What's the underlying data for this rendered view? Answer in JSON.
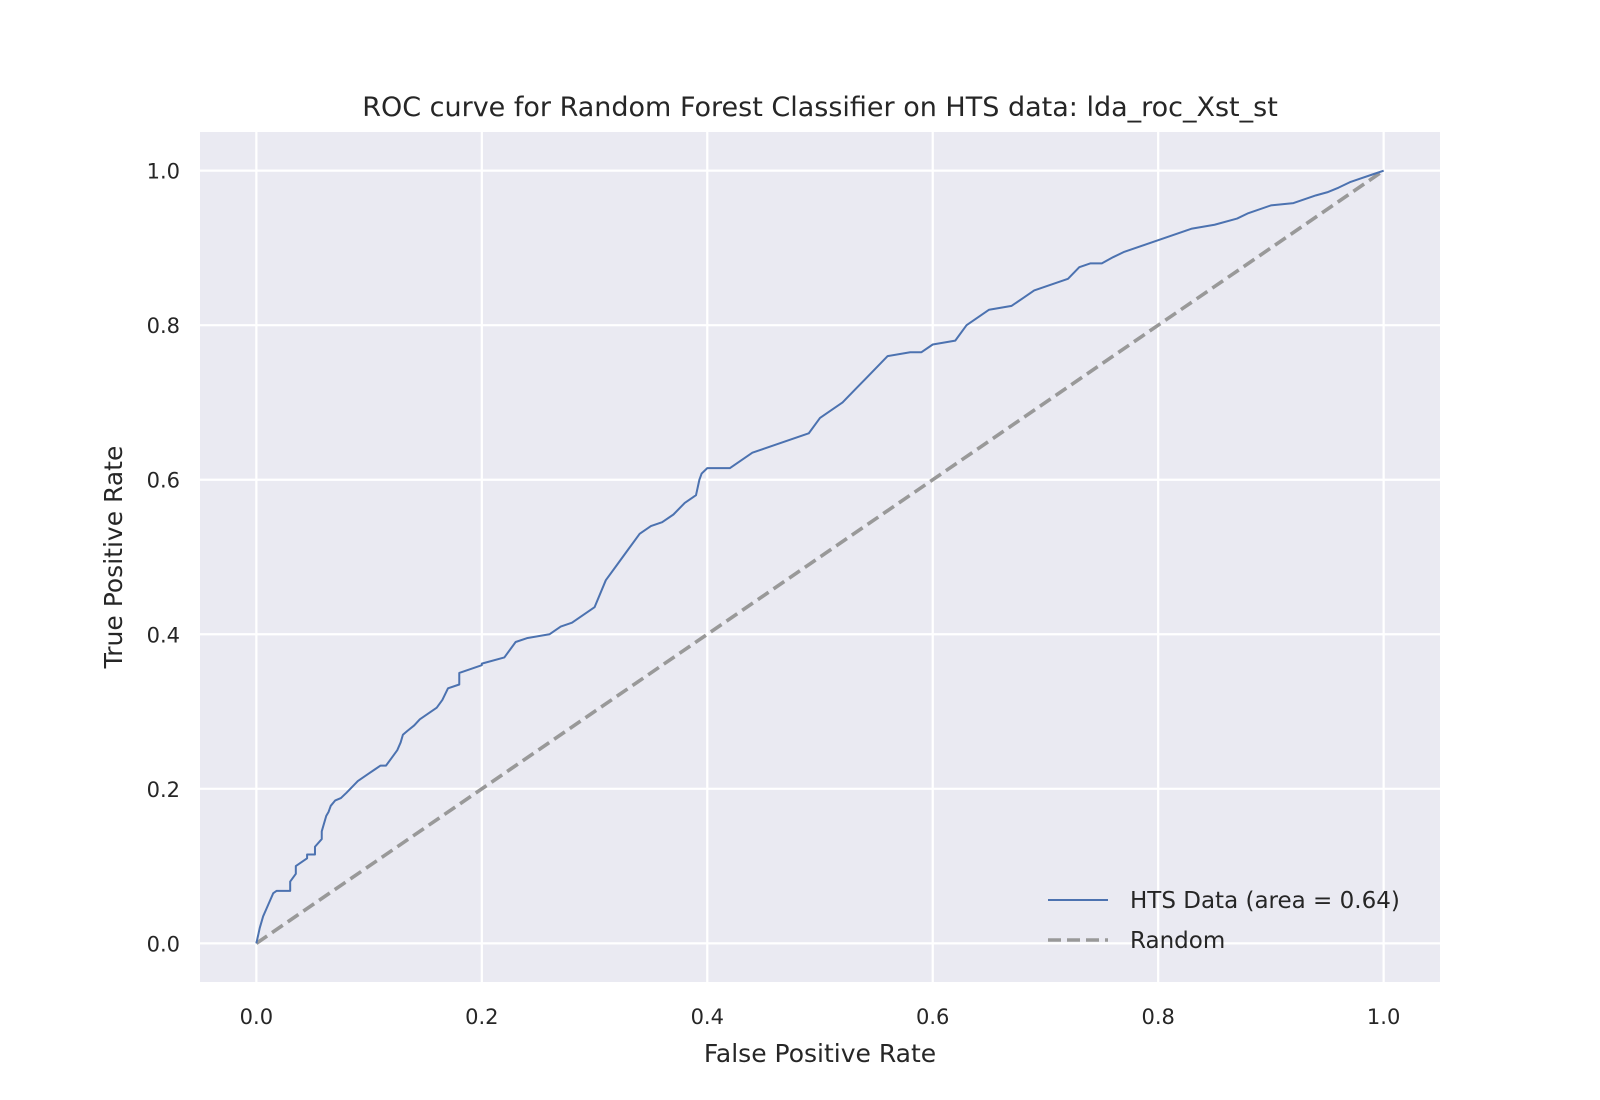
{
  "chart_data": {
    "type": "line",
    "title": "ROC curve for Random Forest Classifier on HTS data: lda_roc_Xst_st",
    "xlabel": "False Positive Rate",
    "ylabel": "True Positive Rate",
    "xlim": [
      -0.05,
      1.05
    ],
    "ylim": [
      -0.05,
      1.05
    ],
    "xticks": [
      0.0,
      0.2,
      0.4,
      0.6,
      0.8,
      1.0
    ],
    "yticks": [
      0.0,
      0.2,
      0.4,
      0.6,
      0.8,
      1.0
    ],
    "xtick_labels": [
      "0.0",
      "0.2",
      "0.4",
      "0.6",
      "0.8",
      "1.0"
    ],
    "ytick_labels": [
      "0.0",
      "0.2",
      "0.4",
      "0.6",
      "0.8",
      "1.0"
    ],
    "grid": true,
    "legend_position": "lower-right",
    "background_color": "#eaeaf2",
    "series": [
      {
        "name": "HTS Data (area = 0.64)",
        "color": "#4c72b0",
        "style": "solid",
        "x": [
          0.0,
          0.003,
          0.006,
          0.009,
          0.012,
          0.015,
          0.018,
          0.03,
          0.03,
          0.035,
          0.035,
          0.04,
          0.045,
          0.045,
          0.052,
          0.052,
          0.058,
          0.058,
          0.06,
          0.062,
          0.064,
          0.066,
          0.07,
          0.075,
          0.08,
          0.09,
          0.095,
          0.1,
          0.105,
          0.11,
          0.115,
          0.12,
          0.125,
          0.128,
          0.13,
          0.134,
          0.14,
          0.145,
          0.15,
          0.16,
          0.165,
          0.17,
          0.18,
          0.18,
          0.2,
          0.2,
          0.22,
          0.23,
          0.24,
          0.26,
          0.27,
          0.28,
          0.29,
          0.295,
          0.3,
          0.31,
          0.32,
          0.33,
          0.34,
          0.35,
          0.36,
          0.37,
          0.38,
          0.39,
          0.393,
          0.395,
          0.4,
          0.42,
          0.43,
          0.44,
          0.45,
          0.46,
          0.47,
          0.48,
          0.49,
          0.5,
          0.51,
          0.52,
          0.52,
          0.53,
          0.54,
          0.55,
          0.56,
          0.58,
          0.59,
          0.6,
          0.62,
          0.63,
          0.64,
          0.65,
          0.67,
          0.68,
          0.69,
          0.7,
          0.72,
          0.73,
          0.74,
          0.75,
          0.76,
          0.77,
          0.79,
          0.8,
          0.82,
          0.83,
          0.85,
          0.87,
          0.88,
          0.9,
          0.92,
          0.94,
          0.95,
          0.96,
          0.97,
          0.98,
          0.99,
          1.0
        ],
        "y": [
          0.0,
          0.02,
          0.035,
          0.045,
          0.055,
          0.065,
          0.068,
          0.068,
          0.08,
          0.09,
          0.1,
          0.105,
          0.11,
          0.115,
          0.115,
          0.125,
          0.135,
          0.145,
          0.155,
          0.165,
          0.17,
          0.178,
          0.185,
          0.188,
          0.195,
          0.21,
          0.215,
          0.22,
          0.225,
          0.23,
          0.23,
          0.24,
          0.25,
          0.26,
          0.27,
          0.275,
          0.282,
          0.29,
          0.295,
          0.305,
          0.315,
          0.33,
          0.335,
          0.35,
          0.36,
          0.362,
          0.37,
          0.39,
          0.395,
          0.4,
          0.41,
          0.415,
          0.425,
          0.43,
          0.435,
          0.47,
          0.49,
          0.51,
          0.53,
          0.54,
          0.545,
          0.555,
          0.57,
          0.58,
          0.6,
          0.608,
          0.615,
          0.615,
          0.625,
          0.635,
          0.64,
          0.645,
          0.65,
          0.655,
          0.66,
          0.68,
          0.69,
          0.7,
          0.7,
          0.715,
          0.73,
          0.745,
          0.76,
          0.765,
          0.765,
          0.775,
          0.78,
          0.8,
          0.81,
          0.82,
          0.825,
          0.835,
          0.845,
          0.85,
          0.86,
          0.875,
          0.88,
          0.88,
          0.888,
          0.895,
          0.905,
          0.91,
          0.92,
          0.925,
          0.93,
          0.938,
          0.945,
          0.955,
          0.958,
          0.968,
          0.972,
          0.978,
          0.985,
          0.99,
          0.995,
          1.0
        ]
      },
      {
        "name": "Random",
        "color": "#999999",
        "style": "dashed",
        "x": [
          0.0,
          1.0
        ],
        "y": [
          0.0,
          1.0
        ]
      }
    ]
  }
}
